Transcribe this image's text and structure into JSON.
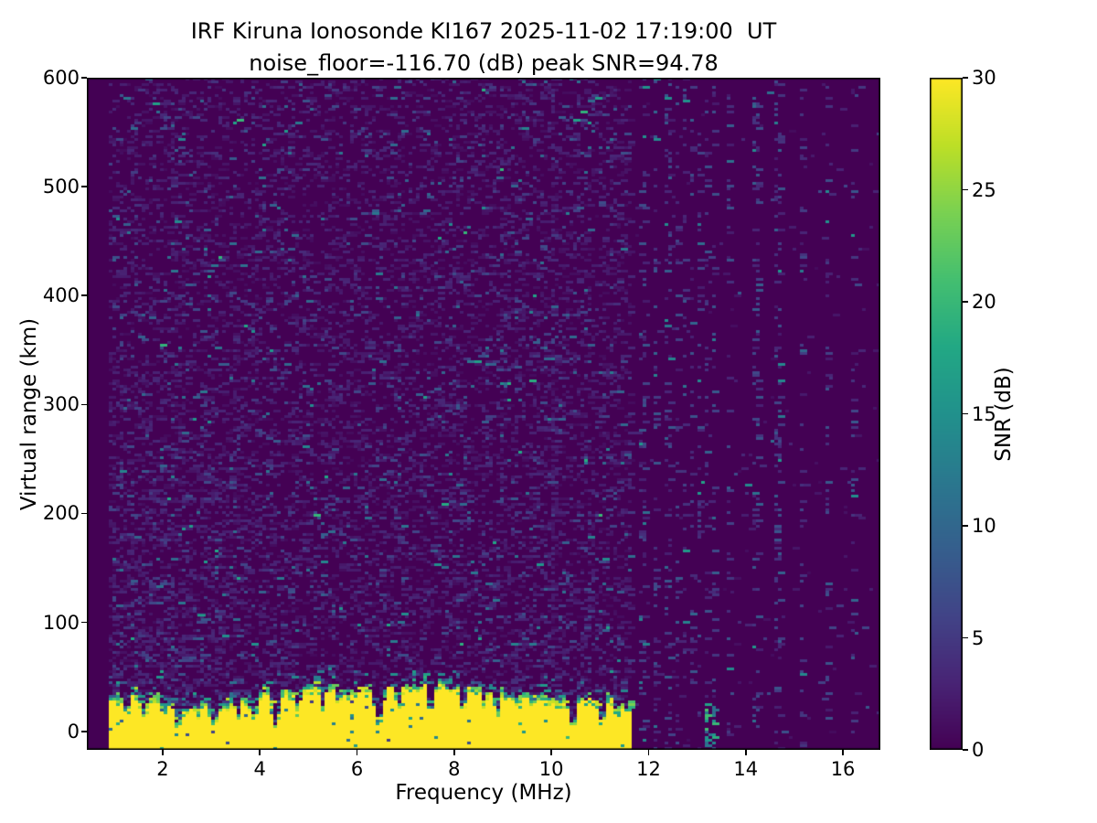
{
  "chart_data": {
    "type": "heatmap",
    "title_line1": "IRF Kiruna Ionosonde KI167 2025-11-02 17:19:00  UT",
    "title_line2": "noise_floor=-116.70 (dB) peak SNR=94.78",
    "xlabel": "Frequency (MHz)",
    "ylabel": "Virtual range (km)",
    "colorbar_label": "SNR (dB)",
    "xlim": [
      0.44,
      16.77
    ],
    "ylim": [
      -17,
      600
    ],
    "clim": [
      0,
      30
    ],
    "x_ticks": [
      2,
      4,
      6,
      8,
      10,
      12,
      14,
      16
    ],
    "y_ticks": [
      0,
      100,
      200,
      300,
      400,
      500,
      600
    ],
    "colorbar_ticks": [
      0,
      5,
      10,
      15,
      20,
      25,
      30
    ],
    "noise_floor_db": -116.7,
    "peak_snr_db": 94.78,
    "station": "IRF Kiruna Ionosonde KI167",
    "timestamp_ut": "2025-11-02 17:19:00 UT",
    "colormap": {
      "name": "viridis",
      "stops": [
        "#440154",
        "#482475",
        "#414487",
        "#355f8d",
        "#2a788e",
        "#21918c",
        "#22a884",
        "#44bf70",
        "#7ad151",
        "#bddf26",
        "#fde725"
      ]
    },
    "heatmap": {
      "seed": 20251102,
      "freq_start_mhz": 0.91,
      "continuous_band_end_mhz": 11.62,
      "band_top_km": {
        "base": 26,
        "min": 16,
        "max": 44,
        "walk_step": 3.5
      },
      "fringe_km": {
        "base": 10,
        "var": 14,
        "boost_range_mhz": [
          10.2,
          11.62
        ],
        "boost_km": 10
      },
      "notches_mhz": [
        {
          "f": 1.27,
          "w": 0.1,
          "d": 0.45
        },
        {
          "f": 1.62,
          "w": 0.12,
          "d": 0.3
        },
        {
          "f": 2.02,
          "w": 0.08,
          "d": 0.5
        },
        {
          "f": 2.32,
          "w": 0.12,
          "d": 0.05
        },
        {
          "f": 2.72,
          "w": 0.08,
          "d": 0.5
        },
        {
          "f": 3.05,
          "w": 0.14,
          "d": 0.3
        },
        {
          "f": 3.55,
          "w": 0.08,
          "d": 0.5
        },
        {
          "f": 3.88,
          "w": 0.12,
          "d": 0.35
        },
        {
          "f": 4.33,
          "w": 0.16,
          "d": 0.05
        },
        {
          "f": 4.78,
          "w": 0.1,
          "d": 0.45
        },
        {
          "f": 5.3,
          "w": 0.08,
          "d": 0.55
        },
        {
          "f": 5.62,
          "w": 0.08,
          "d": 0.6
        },
        {
          "f": 6.45,
          "w": 0.16,
          "d": 0.05
        },
        {
          "f": 6.85,
          "w": 0.1,
          "d": 0.4
        },
        {
          "f": 7.52,
          "w": 0.12,
          "d": 0.3
        },
        {
          "f": 8.18,
          "w": 0.1,
          "d": 0.4
        },
        {
          "f": 8.62,
          "w": 0.08,
          "d": 0.5
        },
        {
          "f": 8.88,
          "w": 0.1,
          "d": 0.35
        },
        {
          "f": 9.32,
          "w": 0.08,
          "d": 0.5
        },
        {
          "f": 10.45,
          "w": 0.12,
          "d": 0.05
        },
        {
          "f": 11.05,
          "w": 0.1,
          "d": 0.08
        },
        {
          "f": 11.35,
          "w": 0.08,
          "d": 0.45
        }
      ],
      "stripes_mhz": [
        {
          "f": 11.88,
          "top_km": 20,
          "fringe_km": 18
        },
        {
          "f": 12.14,
          "top_km": 22,
          "fringe_km": 16
        },
        {
          "f": 12.39,
          "top_km": 18,
          "fringe_km": 20
        },
        {
          "f": 12.58,
          "top_km": 16,
          "fringe_km": 14
        },
        {
          "f": 12.76,
          "top_km": 18,
          "fringe_km": 16
        },
        {
          "f": 12.91,
          "top_km": 14,
          "fringe_km": 12
        },
        {
          "f": 13.06,
          "top_km": 16,
          "fringe_km": 14
        },
        {
          "f": 13.65,
          "top_km": 12,
          "fringe_km": 12
        },
        {
          "f": 14.21,
          "top_km": 10,
          "fringe_km": 10
        },
        {
          "f": 14.68,
          "top_km": 12,
          "fringe_km": 12
        },
        {
          "f": 15.17,
          "top_km": 10,
          "fringe_km": 10
        },
        {
          "f": 15.68,
          "top_km": 11,
          "fringe_km": 12
        },
        {
          "f": 16.21,
          "top_km": 13,
          "fringe_km": 10
        }
      ],
      "weak_stripes_mhz": [
        13.2,
        13.35
      ],
      "enhanced_noise_column_mhz": 10.05,
      "echo_spots": [
        {
          "f": 2.79,
          "km": 107,
          "snr": 16
        },
        {
          "f": 2.86,
          "km": 103,
          "snr": 8
        }
      ],
      "background": {
        "speckle_p": 0.3,
        "sparse_p": 0.012,
        "column_p": 0.17
      }
    }
  }
}
